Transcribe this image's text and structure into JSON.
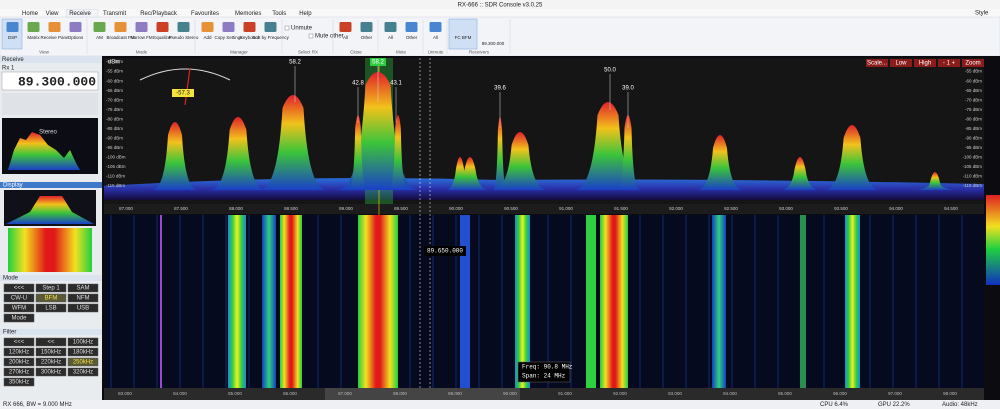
{
  "title_bar": "RX-666 :: SDR Console v3.0.25",
  "tabs": [
    "Home",
    "View",
    "Receive",
    "Transmit",
    "Rec/Playback",
    "Favourites",
    "Memories",
    "Tools",
    "Help"
  ],
  "style": "Style",
  "ribbon": [
    {
      "label": "View",
      "buttons": [
        "DSP",
        "Matrix",
        "Receive Pane",
        "Options"
      ]
    },
    {
      "label": "Mode",
      "buttons": [
        "AM",
        "Broadcast FM",
        "Narrow FM",
        "Equalizer",
        "Pseudo Stereo"
      ]
    },
    {
      "label": "Manager",
      "buttons": [
        "Add",
        "Copy Settings",
        "Keyboard",
        "Sort by Frequency"
      ]
    },
    {
      "label": "Select RX",
      "buttons": [
        "Unmute",
        "Mute other"
      ]
    },
    {
      "label": "Close",
      "buttons": [
        "All",
        "Other"
      ]
    },
    {
      "label": "Mute",
      "buttons": [
        "All",
        "Other"
      ]
    },
    {
      "label": "Unmute",
      "buttons": [
        "All"
      ]
    },
    {
      "label": "Receivers",
      "buttons": [
        "FC BFM",
        "89.300.000"
      ]
    }
  ],
  "left": {
    "header": "Receive",
    "rx": "Rx 1",
    "frequency": "89.300.000",
    "stereo": "Stereo",
    "display": "Display",
    "mode_title": "Mode",
    "modes": [
      "<<<",
      "Step 1",
      "SAM",
      "CW-U",
      "BFM",
      "NFM",
      "WFM",
      "LSB",
      "USB",
      "Mode"
    ],
    "filter_title": "Filter",
    "filters": [
      "<<<",
      "<<",
      "100kHz",
      "120kHz",
      "150kHz",
      "180kHz",
      "200kHz",
      "220kHz",
      "250kHz",
      "270kHz",
      "300kHz",
      "320kHz",
      "350kHz"
    ]
  },
  "spectrum": {
    "unit": "dBm",
    "meter": "-57.3",
    "dbm_labels": [
      "-50 dBm",
      "-55 dBm",
      "-60 dBm",
      "-65 dBm",
      "-70 dBm",
      "-75 dBm",
      "-80 dBm",
      "-85 dBm",
      "-90 dBm",
      "-95 dBm",
      "-100 dBm",
      "-105 dBm",
      "-110 dBm",
      "-115 dBm"
    ],
    "peak_labels": [
      "58.2",
      "58.2",
      "42.8",
      "43.1",
      "39.6",
      "50.0",
      "39.0"
    ],
    "controls": [
      "Scale...",
      "Low",
      "High",
      "- 1 +",
      "Zoom"
    ],
    "freq_labels": [
      "87.000",
      "87.500",
      "88.000",
      "88.500",
      "89.000",
      "89.500",
      "90.000",
      "90.500",
      "91.000",
      "91.500",
      "92.000",
      "92.500",
      "93.000",
      "93.500",
      "94.000",
      "94.500"
    ]
  },
  "waterfall": {
    "marker": "89.650.000",
    "tooltip": [
      "Freq: 90.8 MHz",
      "Span: 24 MHz"
    ],
    "overview_labels": [
      "83.000",
      "84.000",
      "85.000",
      "86.000",
      "87.000",
      "88.000",
      "89.000",
      "90.000",
      "91.000",
      "92.000",
      "93.000",
      "94.000",
      "95.000",
      "96.000",
      "97.000",
      "98.000"
    ]
  },
  "status": {
    "left": "RX 666, BW = 9.000 MHz",
    "cpu": "CPU 6.4%",
    "gpu": "GPU 22.2%",
    "audio": "Audio: 48kHz"
  }
}
